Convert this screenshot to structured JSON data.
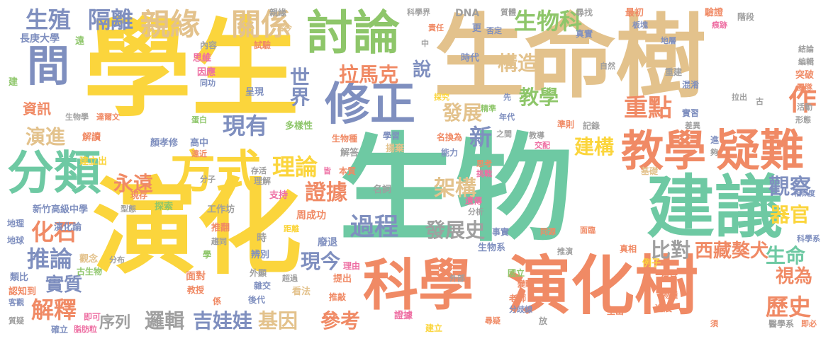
{
  "palette": {
    "yellow": "#fbd53c",
    "green": "#6ec9a3",
    "orange": "#f08a65",
    "tan": "#e3c28c",
    "blue": "#7f8fbf",
    "lime": "#8ec66a",
    "gray": "#9f9f9f",
    "pink": "#ee6fa3"
  },
  "words": [
    {
      "text": "學生",
      "color": "yellow",
      "orient": "h"
    },
    {
      "text": "生物",
      "color": "green",
      "orient": "h"
    },
    {
      "text": "演化",
      "color": "yellow",
      "orient": "h"
    },
    {
      "text": "生命樹",
      "color": "tan",
      "orient": "h"
    },
    {
      "text": "演化樹",
      "color": "orange",
      "orient": "h"
    },
    {
      "text": "科學",
      "color": "orange",
      "orient": "h"
    },
    {
      "text": "建議",
      "color": "green",
      "orient": "h"
    },
    {
      "text": "討論",
      "color": "lime",
      "orient": "h"
    },
    {
      "text": "疑難",
      "color": "orange",
      "orient": "h"
    },
    {
      "text": "教學",
      "color": "orange",
      "orient": "h"
    },
    {
      "text": "修正",
      "color": "blue",
      "orient": "h"
    },
    {
      "text": "分類",
      "color": "green",
      "orient": "h"
    },
    {
      "text": "方式",
      "color": "yellow",
      "orient": "h"
    },
    {
      "text": "間",
      "color": "blue",
      "orient": "h"
    },
    {
      "text": "親緣",
      "color": "tan",
      "orient": "h"
    },
    {
      "text": "關係",
      "color": "tan",
      "orient": "h"
    },
    {
      "text": "生殖",
      "color": "blue",
      "orient": "h"
    },
    {
      "text": "隔離",
      "color": "blue",
      "orient": "h"
    },
    {
      "text": "生物科",
      "color": "lime",
      "orient": "h"
    },
    {
      "text": "重點",
      "color": "orange",
      "orient": "h"
    },
    {
      "text": "作",
      "color": "orange",
      "orient": "h"
    },
    {
      "text": "拉馬克",
      "color": "orange",
      "orient": "h"
    },
    {
      "text": "說",
      "color": "blue",
      "orient": "h"
    },
    {
      "text": "構造",
      "color": "tan",
      "orient": "h"
    },
    {
      "text": "教學",
      "color": "lime",
      "orient": "h"
    },
    {
      "text": "發展",
      "color": "tan",
      "orient": "h"
    },
    {
      "text": "世界",
      "color": "blue",
      "orient": "v"
    },
    {
      "text": "建構",
      "color": "yellow",
      "orient": "h"
    },
    {
      "text": "新",
      "color": "blue",
      "orient": "h"
    },
    {
      "text": "現有",
      "color": "blue",
      "orient": "h"
    },
    {
      "text": "演進",
      "color": "tan",
      "orient": "h"
    },
    {
      "text": "資訊",
      "color": "orange",
      "orient": "h"
    },
    {
      "text": "理論",
      "color": "yellow",
      "orient": "h"
    },
    {
      "text": "永遠",
      "color": "orange",
      "orient": "h"
    },
    {
      "text": "證據",
      "color": "orange",
      "orient": "h"
    },
    {
      "text": "架構",
      "color": "tan",
      "orient": "h"
    },
    {
      "text": "觀察",
      "color": "blue",
      "orient": "h"
    },
    {
      "text": "器官",
      "color": "yellow",
      "orient": "h"
    },
    {
      "text": "過程",
      "color": "blue",
      "orient": "h"
    },
    {
      "text": "發展史",
      "color": "gray",
      "orient": "h"
    },
    {
      "text": "比對",
      "color": "gray",
      "orient": "h"
    },
    {
      "text": "西藏獒犬",
      "color": "orange",
      "orient": "h"
    },
    {
      "text": "生命",
      "color": "green",
      "orient": "h"
    },
    {
      "text": "化石",
      "color": "orange",
      "orient": "h"
    },
    {
      "text": "推論",
      "color": "blue",
      "orient": "h"
    },
    {
      "text": "實質",
      "color": "blue",
      "orient": "h"
    },
    {
      "text": "解釋",
      "color": "orange",
      "orient": "h"
    },
    {
      "text": "現今",
      "color": "blue",
      "orient": "h"
    },
    {
      "text": "視為",
      "color": "orange",
      "orient": "h"
    },
    {
      "text": "歷史",
      "color": "orange",
      "orient": "h"
    },
    {
      "text": "序列",
      "color": "gray",
      "orient": "h"
    },
    {
      "text": "邏輯",
      "color": "gray",
      "orient": "h"
    },
    {
      "text": "吉娃娃",
      "color": "blue",
      "orient": "h"
    },
    {
      "text": "基因",
      "color": "tan",
      "orient": "h"
    },
    {
      "text": "參考",
      "color": "orange",
      "orient": "h"
    },
    {
      "text": "長庚大學",
      "color": "blue",
      "orient": "h"
    },
    {
      "text": "新竹高級中學",
      "color": "blue",
      "orient": "h"
    },
    {
      "text": "演化論",
      "color": "blue",
      "orient": "h"
    },
    {
      "text": "觀念",
      "color": "tan",
      "orient": "h"
    },
    {
      "text": "古生物",
      "color": "lime",
      "orient": "h"
    },
    {
      "text": "類比",
      "color": "blue",
      "orient": "h"
    },
    {
      "text": "認知到",
      "color": "orange",
      "orient": "h"
    },
    {
      "text": "客觀",
      "color": "blue",
      "orient": "h"
    },
    {
      "text": "質疑",
      "color": "gray",
      "orient": "h"
    },
    {
      "text": "確立",
      "color": "blue",
      "orient": "h"
    },
    {
      "text": "脂肪粒",
      "color": "pink",
      "orient": "h"
    },
    {
      "text": "即可",
      "color": "pink",
      "orient": "h"
    },
    {
      "text": "地理",
      "color": "blue",
      "orient": "h"
    },
    {
      "text": "地球",
      "color": "blue",
      "orient": "h"
    },
    {
      "text": "型態",
      "color": "gray",
      "orient": "h"
    },
    {
      "text": "探索",
      "color": "lime",
      "orient": "h"
    },
    {
      "text": "工作坊",
      "color": "gray",
      "orient": "h"
    },
    {
      "text": "推翻",
      "color": "orange",
      "orient": "h"
    },
    {
      "text": "趨同",
      "color": "gray",
      "orient": "h"
    },
    {
      "text": "距離",
      "color": "yellow",
      "orient": "h"
    },
    {
      "text": "支持",
      "color": "pink",
      "orient": "h"
    },
    {
      "text": "理解",
      "color": "gray",
      "orient": "h"
    },
    {
      "text": "存活",
      "color": "gray",
      "orient": "h"
    },
    {
      "text": "皆",
      "color": "pink",
      "orient": "h"
    },
    {
      "text": "本質",
      "color": "orange",
      "orient": "h"
    },
    {
      "text": "分子",
      "color": "gray",
      "orient": "h"
    },
    {
      "text": "現存",
      "color": "orange",
      "orient": "h"
    },
    {
      "text": "名詞",
      "color": "gray",
      "orient": "h"
    },
    {
      "text": "周成功",
      "color": "orange",
      "orient": "h"
    },
    {
      "text": "廢退",
      "color": "blue",
      "orient": "h"
    },
    {
      "text": "時",
      "color": "gray",
      "orient": "h"
    },
    {
      "text": "辨別",
      "color": "blue",
      "orient": "h"
    },
    {
      "text": "面對",
      "color": "orange",
      "orient": "h"
    },
    {
      "text": "外顯",
      "color": "gray",
      "orient": "h"
    },
    {
      "text": "教授",
      "color": "orange",
      "orient": "h"
    },
    {
      "text": "雜交",
      "color": "blue",
      "orient": "h"
    },
    {
      "text": "超過",
      "color": "gray",
      "orient": "h"
    },
    {
      "text": "看法",
      "color": "tan",
      "orient": "h"
    },
    {
      "text": "理由",
      "color": "pink",
      "orient": "h"
    },
    {
      "text": "提出",
      "color": "orange",
      "orient": "h"
    },
    {
      "text": "推敲",
      "color": "orange",
      "orient": "h"
    },
    {
      "text": "後代",
      "color": "blue",
      "orient": "h"
    },
    {
      "text": "分布",
      "color": "gray",
      "orient": "h"
    },
    {
      "text": "學",
      "color": "lime",
      "orient": "h"
    },
    {
      "text": "係",
      "color": "orange",
      "orient": "h"
    },
    {
      "text": "生物學",
      "color": "gray",
      "orient": "h"
    },
    {
      "text": "達爾文",
      "color": "orange",
      "orient": "h"
    },
    {
      "text": "蛋白",
      "color": "lime",
      "orient": "h"
    },
    {
      "text": "解讀",
      "color": "orange",
      "orient": "h"
    },
    {
      "text": "顏孝修",
      "color": "blue",
      "orient": "h"
    },
    {
      "text": "高中",
      "color": "blue",
      "orient": "h"
    },
    {
      "text": "遠近",
      "color": "orange",
      "orient": "h"
    },
    {
      "text": "建立出",
      "color": "yellow",
      "orient": "h"
    },
    {
      "text": "多樣性",
      "color": "lime",
      "orient": "h"
    },
    {
      "text": "呈現",
      "color": "blue",
      "orient": "h"
    },
    {
      "text": "因應",
      "color": "pink",
      "orient": "h"
    },
    {
      "text": "同功",
      "color": "blue",
      "orient": "h"
    },
    {
      "text": "思維",
      "color": "pink",
      "orient": "h"
    },
    {
      "text": "內容",
      "color": "gray",
      "orient": "h"
    },
    {
      "text": "試驗",
      "color": "orange",
      "orient": "h"
    },
    {
      "text": "遠",
      "color": "lime",
      "orient": "h"
    },
    {
      "text": "建",
      "color": "lime",
      "orient": "h"
    },
    {
      "text": "親緣",
      "color": "gray",
      "orient": "h"
    },
    {
      "text": "當今",
      "color": "tan",
      "orient": "h"
    },
    {
      "text": "科學界",
      "color": "gray",
      "orient": "h"
    },
    {
      "text": "中",
      "color": "gray",
      "orient": "h"
    },
    {
      "text": "DNA",
      "color": "gray",
      "orient": "h"
    },
    {
      "text": "責任",
      "color": "orange",
      "orient": "h"
    },
    {
      "text": "更",
      "color": "blue",
      "orient": "h"
    },
    {
      "text": "否定",
      "color": "blue",
      "orient": "h"
    },
    {
      "text": "質體",
      "color": "gray",
      "orient": "h"
    },
    {
      "text": "時代",
      "color": "blue",
      "orient": "h"
    },
    {
      "text": "尋找",
      "color": "gray",
      "orient": "h"
    },
    {
      "text": "真實",
      "color": "blue",
      "orient": "h"
    },
    {
      "text": "最初",
      "color": "orange",
      "orient": "h"
    },
    {
      "text": "板塊",
      "color": "blue",
      "orient": "h"
    },
    {
      "text": "驗證",
      "color": "orange",
      "orient": "h"
    },
    {
      "text": "痕跡",
      "color": "pink",
      "orient": "h"
    },
    {
      "text": "階段",
      "color": "gray",
      "orient": "h"
    },
    {
      "text": "地層",
      "color": "blue",
      "orient": "h"
    },
    {
      "text": "結論",
      "color": "gray",
      "orient": "h"
    },
    {
      "text": "編輯",
      "color": "gray",
      "orient": "h"
    },
    {
      "text": "突破",
      "color": "orange",
      "orient": "h"
    },
    {
      "text": "團隊",
      "color": "orange",
      "orient": "h"
    },
    {
      "text": "活動",
      "color": "gray",
      "orient": "h"
    },
    {
      "text": "形態",
      "color": "gray",
      "orient": "h"
    },
    {
      "text": "自然",
      "color": "gray",
      "orient": "h"
    },
    {
      "text": "重建",
      "color": "gray",
      "orient": "h"
    },
    {
      "text": "混淆",
      "color": "blue",
      "orient": "h"
    },
    {
      "text": "拉出",
      "color": "gray",
      "orient": "h"
    },
    {
      "text": "古",
      "color": "gray",
      "orient": "h"
    },
    {
      "text": "先",
      "color": "blue",
      "orient": "h"
    },
    {
      "text": "探究",
      "color": "yellow",
      "orient": "h"
    },
    {
      "text": "精準",
      "color": "lime",
      "orient": "h"
    },
    {
      "text": "年代",
      "color": "blue",
      "orient": "h"
    },
    {
      "text": "學習",
      "color": "blue",
      "orient": "h"
    },
    {
      "text": "生物種",
      "color": "orange",
      "orient": "h"
    },
    {
      "text": "揚棄",
      "color": "tan",
      "orient": "h"
    },
    {
      "text": "名換為",
      "color": "orange",
      "orient": "h"
    },
    {
      "text": "之間",
      "color": "gray",
      "orient": "h"
    },
    {
      "text": "教導",
      "color": "gray",
      "orient": "h"
    },
    {
      "text": "交配",
      "color": "pink",
      "orient": "h"
    },
    {
      "text": "準則",
      "color": "orange",
      "orient": "h"
    },
    {
      "text": "記錄",
      "color": "gray",
      "orient": "h"
    },
    {
      "text": "實習",
      "color": "blue",
      "orient": "h"
    },
    {
      "text": "差異",
      "color": "gray",
      "orient": "h"
    },
    {
      "text": "能力",
      "color": "blue",
      "orient": "h"
    },
    {
      "text": "思考",
      "color": "orange",
      "orient": "h"
    },
    {
      "text": "挑戰",
      "color": "pink",
      "orient": "h"
    },
    {
      "text": "進",
      "color": "blue",
      "orient": "h"
    },
    {
      "text": "夠",
      "color": "gray",
      "orient": "h"
    },
    {
      "text": "基礎",
      "color": "tan",
      "orient": "h"
    },
    {
      "text": "解答",
      "color": "gray",
      "orient": "h"
    },
    {
      "text": "遺傳",
      "color": "pink",
      "orient": "h"
    },
    {
      "text": "分析",
      "color": "gray",
      "orient": "h"
    },
    {
      "text": "事實",
      "color": "blue",
      "orient": "h"
    },
    {
      "text": "同源",
      "color": "orange",
      "orient": "h"
    },
    {
      "text": "相似度",
      "color": "blue",
      "orient": "h"
    },
    {
      "text": "科學系",
      "color": "blue",
      "orient": "h"
    },
    {
      "text": "面臨",
      "color": "orange",
      "orient": "h"
    },
    {
      "text": "生物系",
      "color": "blue",
      "orient": "h"
    },
    {
      "text": "推演",
      "color": "gray",
      "orient": "h"
    },
    {
      "text": "真相",
      "color": "orange",
      "orient": "h"
    },
    {
      "text": "例子",
      "color": "yellow",
      "orient": "h"
    },
    {
      "text": "演替",
      "color": "orange",
      "orient": "h"
    },
    {
      "text": "國立",
      "color": "lime",
      "orient": "h"
    },
    {
      "text": "變動",
      "color": "orange",
      "orient": "h"
    },
    {
      "text": "外部",
      "color": "gray",
      "orient": "h"
    },
    {
      "text": "老師",
      "color": "orange",
      "orient": "h"
    },
    {
      "text": "分歧線",
      "color": "blue",
      "orient": "h"
    },
    {
      "text": "證據",
      "color": "pink",
      "orient": "h"
    },
    {
      "text": "尋疑",
      "color": "orange",
      "orient": "h"
    },
    {
      "text": "建立",
      "color": "yellow",
      "orient": "h"
    },
    {
      "text": "放",
      "color": "gray",
      "orient": "h"
    },
    {
      "text": "物種",
      "color": "orange",
      "orient": "h"
    },
    {
      "text": "生出",
      "color": "orange",
      "orient": "h"
    },
    {
      "text": "進展",
      "color": "orange",
      "orient": "h"
    },
    {
      "text": "須",
      "color": "orange",
      "orient": "h"
    },
    {
      "text": "醫學系",
      "color": "gray",
      "orient": "h"
    },
    {
      "text": "即必",
      "color": "orange",
      "orient": "h"
    }
  ]
}
